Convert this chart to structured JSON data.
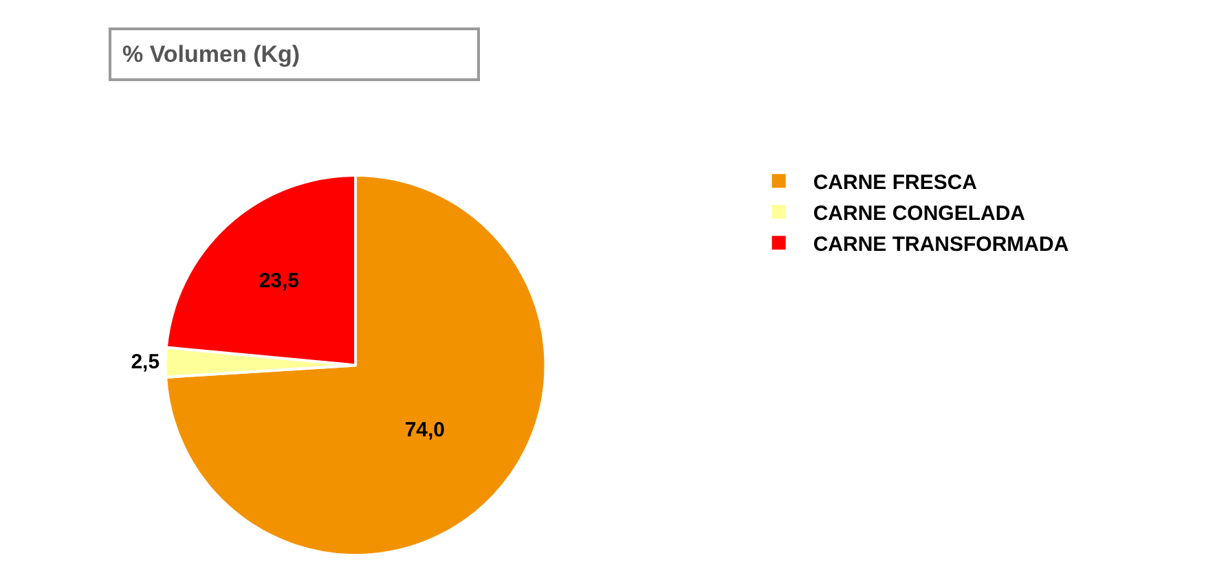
{
  "chart_data": {
    "type": "pie",
    "title": "% Volumen (Kg)",
    "categories": [
      "CARNE FRESCA",
      "CARNE CONGELADA",
      "CARNE TRANSFORMADA"
    ],
    "values": [
      74.0,
      2.5,
      23.5
    ],
    "value_labels": [
      "74,0",
      "2,5",
      "23,5"
    ],
    "colors": [
      "#f39200",
      "#ffff99",
      "#ff0000"
    ],
    "legend": "right"
  }
}
